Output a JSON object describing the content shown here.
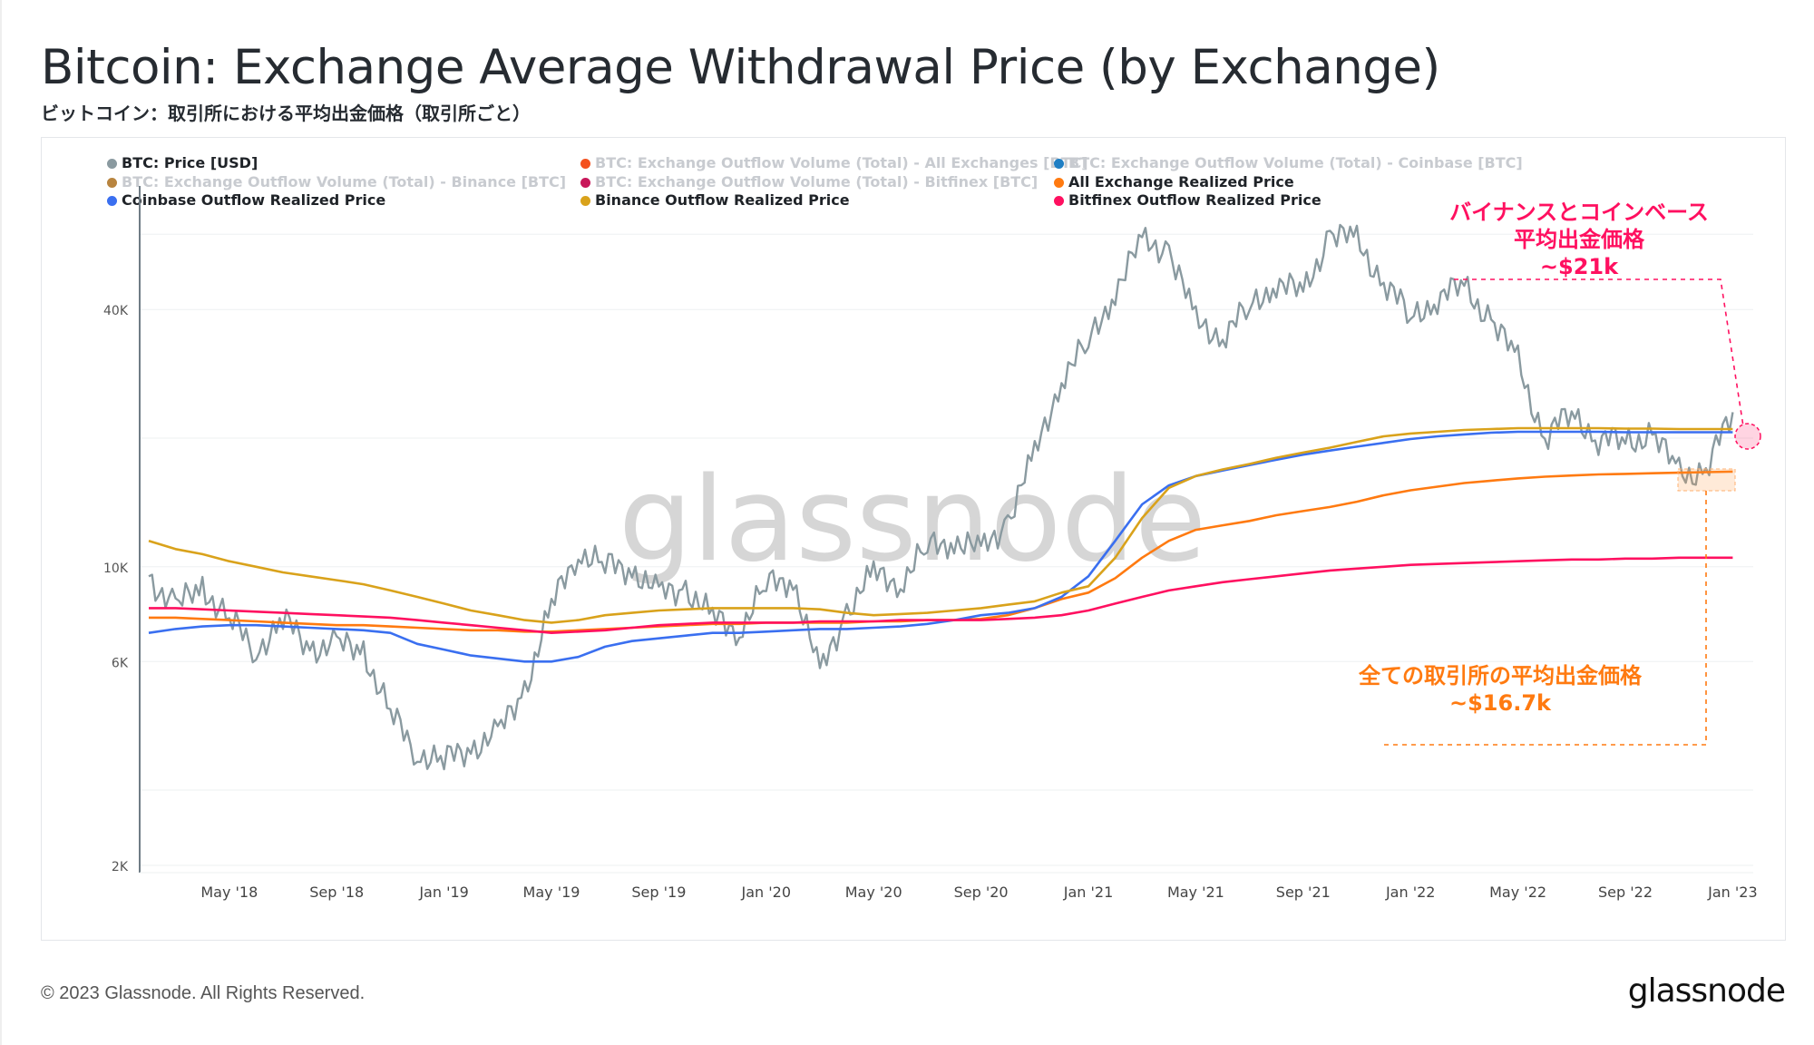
{
  "header": {
    "title": "Bitcoin: Exchange Average Withdrawal Price (by Exchange)",
    "subtitle": "ビットコイン：取引所における平均出金価格（取引所ごと）"
  },
  "legend": [
    {
      "label": "BTC: Price [USD]",
      "color": "#8a9aa0",
      "active": true
    },
    {
      "label": "BTC: Exchange Outflow Volume (Total) - All Exchanges [BTC]",
      "color": "#f4511e",
      "active": false
    },
    {
      "label": "BTC: Exchange Outflow Volume (Total) - Coinbase [BTC]",
      "color": "#1f7fc4",
      "active": false
    },
    {
      "label": "BTC: Exchange Outflow Volume (Total) - Binance [BTC]",
      "color": "#b8843f",
      "active": false
    },
    {
      "label": "BTC: Exchange Outflow Volume (Total) - Bitfinex [BTC]",
      "color": "#c8175a",
      "active": false
    },
    {
      "label": "All Exchange Realized Price",
      "color": "#ff7a10",
      "active": true
    },
    {
      "label": "Coinbase Outflow Realized Price",
      "color": "#3a6ff0",
      "active": true
    },
    {
      "label": "Binance Outflow Realized Price",
      "color": "#d9a21b",
      "active": true
    },
    {
      "label": "Bitfinex Outflow Realized Price",
      "color": "#ff1060",
      "active": true
    }
  ],
  "annotations": {
    "binance_coinbase": {
      "line1": "バイナンスとコインベース",
      "line2": "平均出金価格",
      "line3": "~$21k",
      "color": "#ff1060"
    },
    "all_exchanges": {
      "line1": "全ての取引所の平均出金価格",
      "line2": "~$16.7k",
      "color": "#ff7a10"
    }
  },
  "watermark": "glassnode",
  "footer": {
    "copyright": "© 2023 Glassnode. All Rights Reserved.",
    "logo": "glassnode"
  },
  "chart_data": {
    "type": "line",
    "title": "Bitcoin: Exchange Average Withdrawal Price (by Exchange)",
    "yscale": "log",
    "ylim": [
      2000,
      65000
    ],
    "yticks": [
      {
        "v": 2000,
        "label": "2K"
      },
      {
        "v": 6000,
        "label": "6K"
      },
      {
        "v": 10000,
        "label": "10K"
      },
      {
        "v": 40000,
        "label": "40K"
      }
    ],
    "ygrid": [
      2000,
      3000,
      6000,
      10000,
      20000,
      40000,
      60000
    ],
    "xticks": [
      {
        "m": 3,
        "label": "May '18"
      },
      {
        "m": 7,
        "label": "Sep '18"
      },
      {
        "m": 11,
        "label": "Jan '19"
      },
      {
        "m": 15,
        "label": "May '19"
      },
      {
        "m": 19,
        "label": "Sep '19"
      },
      {
        "m": 23,
        "label": "Jan '20"
      },
      {
        "m": 27,
        "label": "May '20"
      },
      {
        "m": 31,
        "label": "Sep '20"
      },
      {
        "m": 35,
        "label": "Jan '21"
      },
      {
        "m": 39,
        "label": "May '21"
      },
      {
        "m": 43,
        "label": "Sep '21"
      },
      {
        "m": 47,
        "label": "Jan '22"
      },
      {
        "m": 51,
        "label": "May '22"
      },
      {
        "m": 55,
        "label": "Sep '22"
      },
      {
        "m": 59,
        "label": "Jan '23"
      }
    ],
    "x_start": "2018-02",
    "x_unit": "month",
    "series": [
      {
        "name": "BTC: Price [USD]",
        "color": "#8a9aa0",
        "values": [
          9500,
          8000,
          9000,
          7500,
          6400,
          7500,
          6500,
          6500,
          6400,
          4500,
          3700,
          3500,
          3800,
          4000,
          5200,
          8000,
          11000,
          10000,
          10000,
          8500,
          9000,
          7500,
          7200,
          9000,
          9500,
          5500,
          8000,
          9500,
          9300,
          11000,
          11700,
          10700,
          13000,
          18000,
          28000,
          33000,
          45000,
          57000,
          56000,
          37000,
          35000,
          40000,
          47000,
          43000,
          61000,
          57000,
          47000,
          38000,
          43000,
          45000,
          38000,
          30000,
          20000,
          23000,
          20000,
          19500,
          20500,
          16500,
          16800,
          23000
        ]
      },
      {
        "name": "All Exchange Realized Price",
        "color": "#ff7a10",
        "values": [
          7600,
          7600,
          7550,
          7500,
          7450,
          7400,
          7350,
          7300,
          7300,
          7250,
          7200,
          7150,
          7100,
          7100,
          7050,
          7050,
          7100,
          7150,
          7200,
          7250,
          7300,
          7350,
          7350,
          7400,
          7400,
          7400,
          7400,
          7450,
          7450,
          7500,
          7500,
          7550,
          7700,
          8000,
          8400,
          8700,
          9400,
          10500,
          11500,
          12200,
          12500,
          12800,
          13200,
          13500,
          13800,
          14200,
          14700,
          15100,
          15400,
          15700,
          15900,
          16100,
          16250,
          16350,
          16450,
          16500,
          16550,
          16600,
          16650,
          16700
        ]
      },
      {
        "name": "Coinbase Outflow Realized Price",
        "color": "#3a6ff0",
        "values": [
          7000,
          7150,
          7250,
          7300,
          7300,
          7250,
          7200,
          7150,
          7100,
          7000,
          6600,
          6400,
          6200,
          6100,
          6000,
          6000,
          6150,
          6500,
          6700,
          6800,
          6900,
          7000,
          7000,
          7050,
          7100,
          7150,
          7150,
          7200,
          7250,
          7350,
          7500,
          7700,
          7800,
          8000,
          8500,
          9500,
          11500,
          14000,
          15500,
          16300,
          16800,
          17300,
          17800,
          18300,
          18700,
          19100,
          19500,
          19900,
          20200,
          20400,
          20600,
          20700,
          20700,
          20700,
          20700,
          20650,
          20650,
          20650,
          20650,
          20650
        ]
      },
      {
        "name": "Binance Outflow Realized Price",
        "color": "#d9a21b",
        "values": [
          11500,
          11000,
          10700,
          10300,
          10000,
          9700,
          9500,
          9300,
          9100,
          8800,
          8500,
          8200,
          7900,
          7700,
          7500,
          7400,
          7500,
          7700,
          7800,
          7900,
          7950,
          8000,
          8000,
          8000,
          8000,
          7950,
          7800,
          7700,
          7750,
          7800,
          7900,
          8000,
          8150,
          8300,
          8700,
          9000,
          10500,
          13000,
          15300,
          16300,
          16900,
          17400,
          18000,
          18500,
          19000,
          19600,
          20200,
          20500,
          20700,
          20900,
          21000,
          21100,
          21100,
          21100,
          21100,
          21050,
          21050,
          21000,
          21000,
          21000
        ]
      },
      {
        "name": "Bitfinex Outflow Realized Price",
        "color": "#ff1060",
        "values": [
          8000,
          8000,
          7950,
          7900,
          7850,
          7800,
          7750,
          7700,
          7650,
          7600,
          7500,
          7400,
          7300,
          7200,
          7100,
          7000,
          7050,
          7100,
          7200,
          7300,
          7350,
          7400,
          7400,
          7400,
          7400,
          7450,
          7450,
          7450,
          7500,
          7500,
          7500,
          7500,
          7550,
          7600,
          7700,
          7900,
          8200,
          8500,
          8800,
          9000,
          9200,
          9350,
          9500,
          9650,
          9800,
          9900,
          10000,
          10100,
          10150,
          10200,
          10250,
          10300,
          10350,
          10400,
          10400,
          10450,
          10450,
          10500,
          10500,
          10500
        ]
      }
    ]
  }
}
